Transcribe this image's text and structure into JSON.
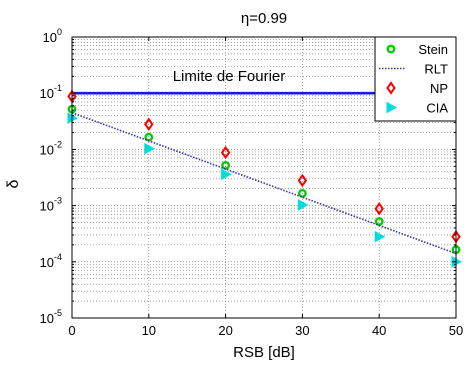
{
  "chart_data": {
    "type": "scatter",
    "title": "η=0.99",
    "xlabel": "RSB [dB]",
    "ylabel": "δ",
    "y_scale": "log",
    "xlim": [
      0,
      50
    ],
    "ylim": [
      1e-05,
      1
    ],
    "x_ticks": [
      0,
      10,
      20,
      30,
      40,
      50
    ],
    "y_ticks": [
      {
        "value": 1e-05,
        "base": "10",
        "exp": "-5"
      },
      {
        "value": 0.0001,
        "base": "10",
        "exp": "-4"
      },
      {
        "value": 0.001,
        "base": "10",
        "exp": "-3"
      },
      {
        "value": 0.01,
        "base": "10",
        "exp": "-2"
      },
      {
        "value": 0.1,
        "base": "10",
        "exp": "-1"
      },
      {
        "value": 1,
        "base": "10",
        "exp": "0"
      }
    ],
    "grid": true,
    "legend_position": "top-right",
    "reference_line": {
      "label": "Limite de Fourier",
      "y": 0.1,
      "color": "#1a1adb"
    },
    "series": [
      {
        "name": "Stein",
        "marker": "circle",
        "color": "#00cc00",
        "x": [
          0,
          10,
          20,
          30,
          40,
          50
        ],
        "y": [
          0.052,
          0.0165,
          0.0052,
          0.00165,
          0.00052,
          0.000165
        ]
      },
      {
        "name": "RLT",
        "marker": "dotted-line",
        "color": "#3333aa",
        "x": [
          0,
          50
        ],
        "y": [
          0.045,
          0.00014
        ]
      },
      {
        "name": "NP",
        "marker": "diamond",
        "color": "#ff0000",
        "x": [
          0,
          10,
          20,
          30,
          40,
          50
        ],
        "y": [
          0.088,
          0.028,
          0.0088,
          0.0028,
          0.00088,
          0.00028
        ]
      },
      {
        "name": "CIA",
        "marker": "triangle-right",
        "color": "#00dddd",
        "x": [
          0,
          10,
          20,
          30,
          40,
          50
        ],
        "y": [
          0.036,
          0.0103,
          0.0036,
          0.00103,
          0.00028,
          0.0001
        ]
      }
    ]
  }
}
